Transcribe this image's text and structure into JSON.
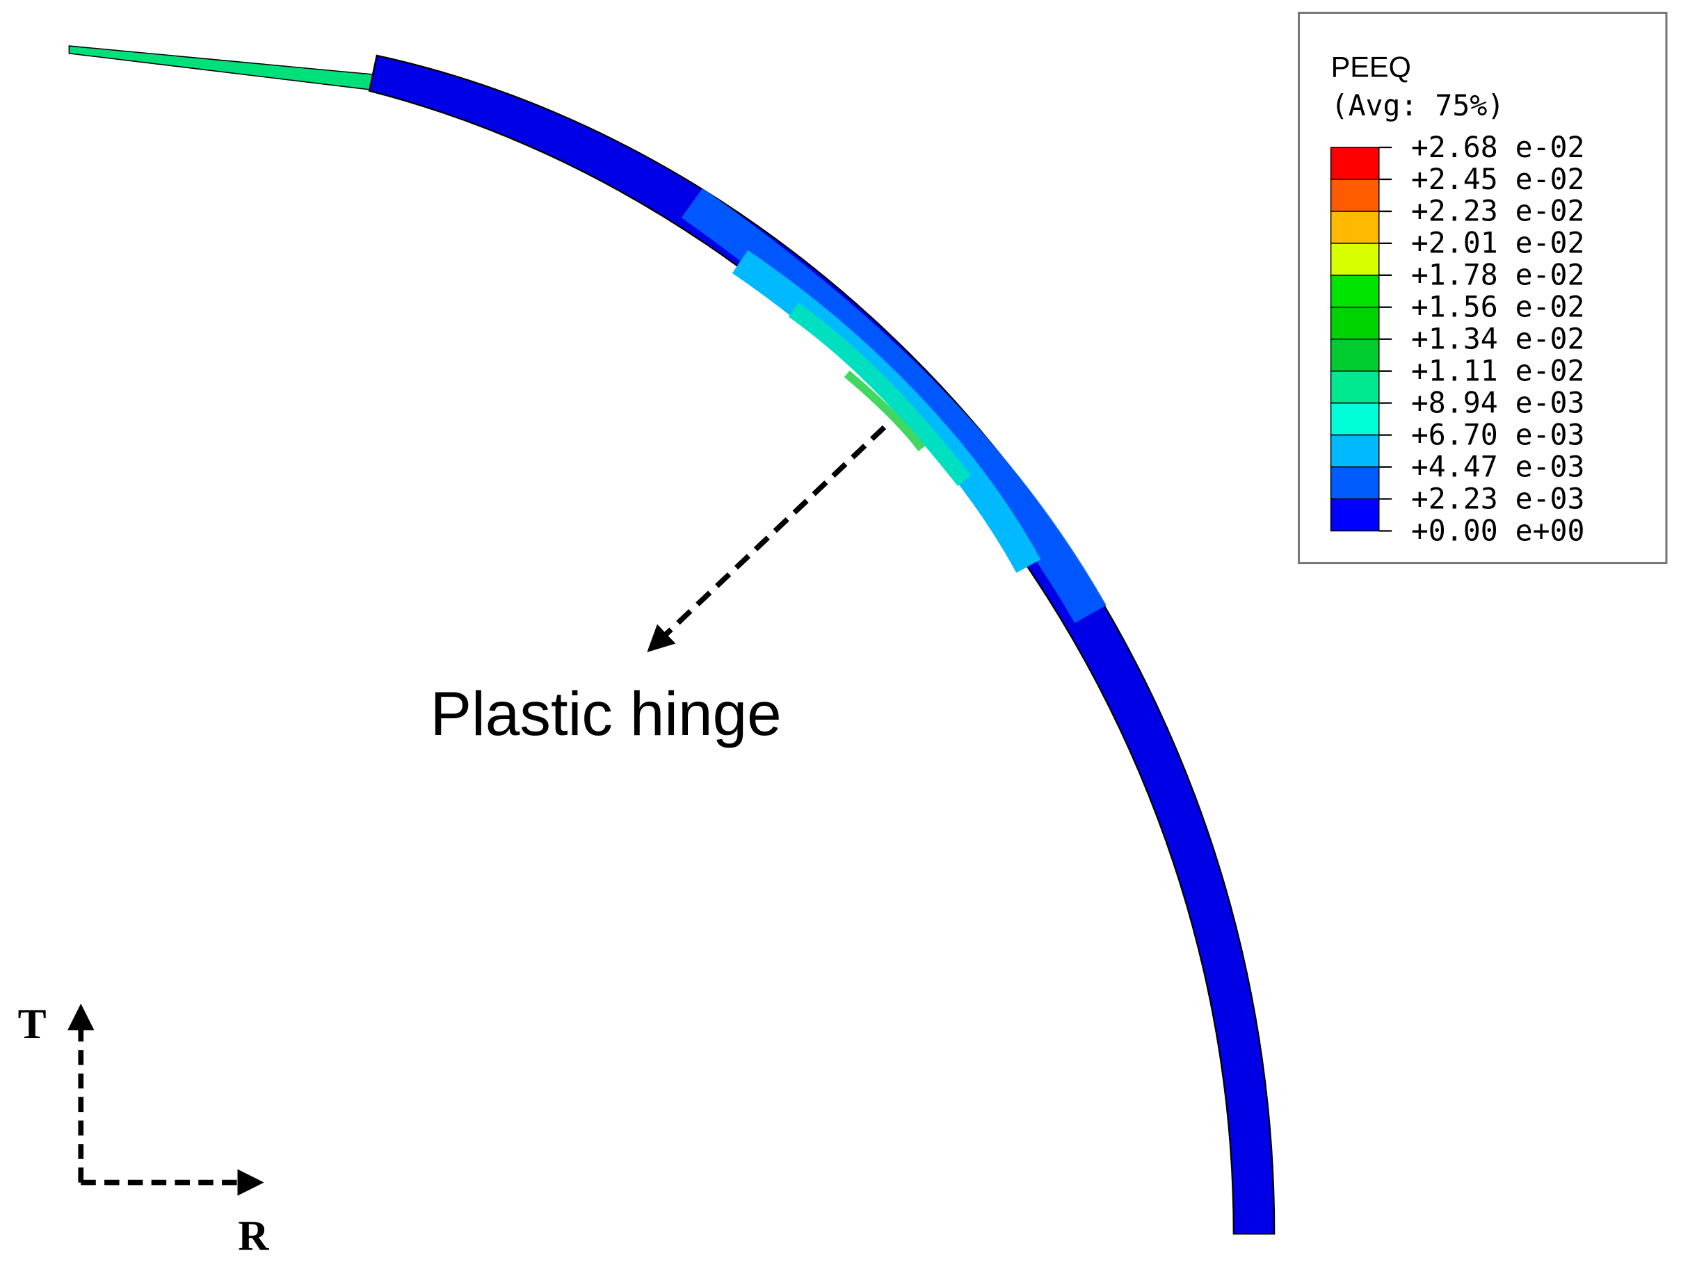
{
  "legend": {
    "title": "PEEQ",
    "subtitle": "(Avg: 75%)",
    "labels": [
      "+2.68 e-02",
      "+2.45 e-02",
      "+2.23 e-02",
      "+2.01 e-02",
      "+1.78 e-02",
      "+1.56 e-02",
      "+1.34 e-02",
      "+1.11 e-02",
      "+8.94 e-03",
      "+6.70 e-03",
      "+4.47 e-03",
      "+2.23 e-03",
      "+0.00 e+00"
    ],
    "colors": [
      "#ff0000",
      "#ff5c00",
      "#ffb900",
      "#d8ff00",
      "#00e400",
      "#00d400",
      "#00cc30",
      "#00e890",
      "#00ffd8",
      "#00b9ff",
      "#005cff",
      "#0000ff"
    ]
  },
  "annotation": "Plastic hinge",
  "axes": {
    "t": "T",
    "r": "R"
  }
}
